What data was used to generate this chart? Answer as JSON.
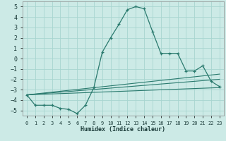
{
  "xlabel": "Humidex (Indice chaleur)",
  "bg_color": "#cceae6",
  "grid_color": "#a8d5d0",
  "line_color": "#2a7a6e",
  "xlim": [
    -0.5,
    23.5
  ],
  "ylim": [
    -5.5,
    5.5
  ],
  "xticks": [
    0,
    1,
    2,
    3,
    4,
    5,
    6,
    7,
    8,
    9,
    10,
    11,
    12,
    13,
    14,
    15,
    16,
    17,
    18,
    19,
    20,
    21,
    22,
    23
  ],
  "yticks": [
    -5,
    -4,
    -3,
    -2,
    -1,
    0,
    1,
    2,
    3,
    4,
    5
  ],
  "main_x": [
    0,
    1,
    2,
    3,
    4,
    5,
    6,
    7,
    8,
    9,
    10,
    11,
    12,
    13,
    14,
    15,
    16,
    17,
    18,
    19,
    20,
    21,
    22,
    23
  ],
  "main_y": [
    -3.5,
    -4.5,
    -4.5,
    -4.5,
    -4.8,
    -4.9,
    -5.3,
    -4.5,
    -2.8,
    0.6,
    2.0,
    3.3,
    4.7,
    5.0,
    4.8,
    2.6,
    0.5,
    0.5,
    0.5,
    -1.2,
    -1.2,
    -0.7,
    -2.2,
    -2.7
  ],
  "line1_x": [
    0,
    23
  ],
  "line1_y": [
    -3.5,
    -1.5
  ],
  "line2_x": [
    0,
    23
  ],
  "line2_y": [
    -3.5,
    -2.0
  ],
  "line3_x": [
    0,
    23
  ],
  "line3_y": [
    -3.5,
    -2.8
  ]
}
